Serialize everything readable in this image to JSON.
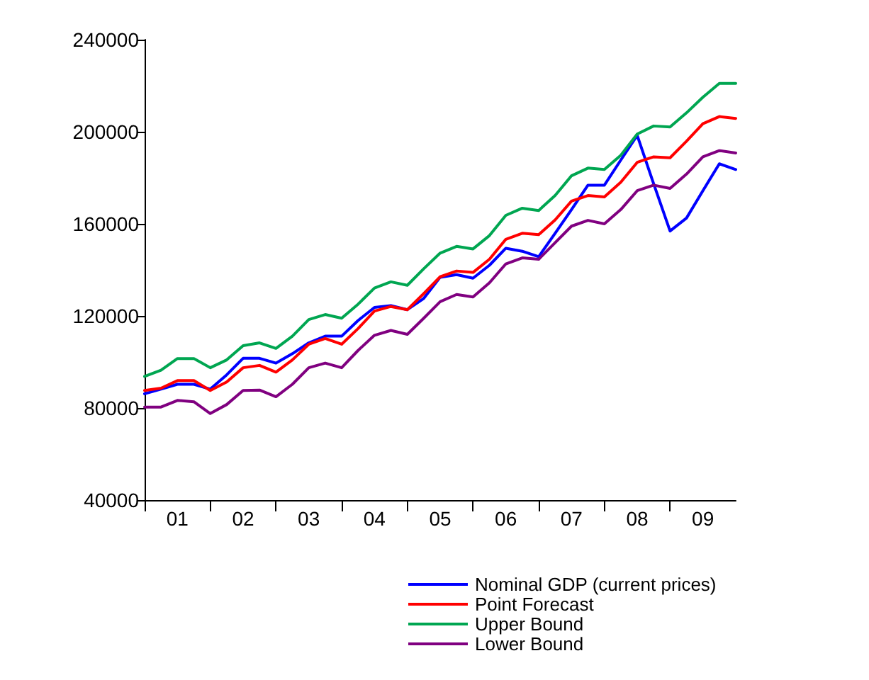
{
  "chart_data": {
    "type": "line",
    "categories": [
      null,
      null,
      "01",
      null,
      null,
      null,
      "02",
      null,
      null,
      null,
      "03",
      null,
      null,
      null,
      "04",
      null,
      null,
      null,
      "05",
      null,
      null,
      null,
      "06",
      null,
      null,
      null,
      "07",
      null,
      null,
      null,
      "08",
      null,
      null,
      null,
      "09",
      null,
      null
    ],
    "series": [
      {
        "name": "Nominal GDP (current prices)",
        "color": "#0000ff",
        "values": [
          86200,
          88200,
          90300,
          90300,
          88200,
          94400,
          101600,
          101600,
          99500,
          103600,
          108300,
          111200,
          111200,
          118000,
          123700,
          124500,
          122700,
          127600,
          136800,
          137900,
          136400,
          142000,
          149400,
          148100,
          145700,
          155900,
          166200,
          176800,
          176800,
          187700,
          198400,
          177400,
          156900,
          162500,
          174400,
          186100,
          183600
        ]
      },
      {
        "name": "Point Forecast",
        "color": "#ff0000",
        "values": [
          87600,
          88600,
          91900,
          91900,
          87600,
          91300,
          97500,
          98500,
          95600,
          100900,
          107700,
          110200,
          107700,
          114500,
          122100,
          124100,
          122700,
          129700,
          137000,
          139500,
          138900,
          144600,
          153300,
          155900,
          155300,
          161700,
          169900,
          172300,
          171700,
          178100,
          186700,
          189100,
          188700,
          195900,
          203500,
          206600,
          205800
        ]
      },
      {
        "name": "Upper Bound",
        "color": "#00a651",
        "values": [
          93700,
          96400,
          101500,
          101500,
          97500,
          100900,
          107100,
          108300,
          105900,
          111200,
          118400,
          120600,
          119000,
          125100,
          132100,
          134800,
          133300,
          140500,
          147300,
          150200,
          149100,
          154900,
          163700,
          166800,
          165800,
          172300,
          180900,
          184200,
          183600,
          189800,
          199000,
          202500,
          202100,
          208200,
          215000,
          221000,
          221000
        ]
      },
      {
        "name": "Lower Bound",
        "color": "#800080",
        "values": [
          80400,
          80400,
          83300,
          82700,
          77600,
          81500,
          87600,
          87800,
          84900,
          90300,
          97500,
          99500,
          97500,
          105000,
          111600,
          113700,
          112000,
          119000,
          126200,
          129300,
          128200,
          134400,
          142600,
          145200,
          144600,
          151800,
          159000,
          161500,
          160000,
          166200,
          174400,
          176800,
          175400,
          181600,
          189100,
          191800,
          190800
        ]
      }
    ],
    "ylim": [
      40000,
      240000
    ],
    "yticks": [
      40000,
      80000,
      120000,
      160000,
      200000,
      240000
    ],
    "grid": false,
    "legend": "bottom",
    "line_style": "solid"
  }
}
